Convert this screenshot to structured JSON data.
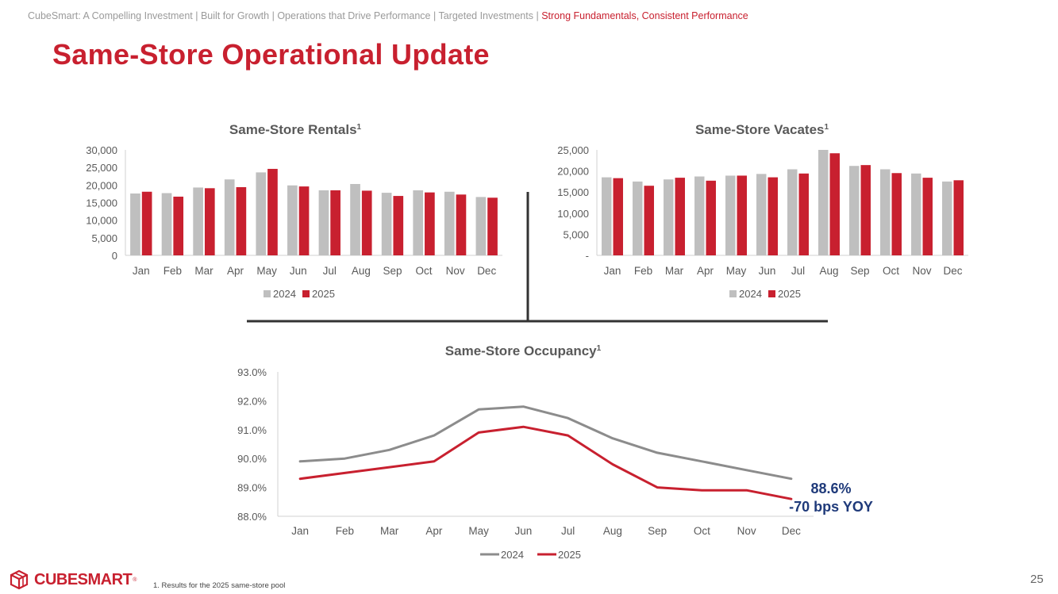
{
  "breadcrumb": {
    "items": [
      "CubeSmart: A Compelling Investment",
      "Built for Growth",
      "Operations that Drive Performance",
      "Targeted Investments",
      "Strong Fundamentals, Consistent Performance"
    ],
    "separator": "|"
  },
  "page_title": "Same-Store Operational Update",
  "footnote": "1.    Results for the 2025 same-store pool",
  "page_number": "25",
  "logo": {
    "text": "CUBESMART",
    "tm": "®"
  },
  "colors": {
    "accent": "#c8202f",
    "series_2024_bar": "#bfbfbf",
    "series_2024_line": "#8c8c8c",
    "series_2025": "#c8202f",
    "callout": "#1f3a7a"
  },
  "annotation": {
    "value": "88.6%",
    "change": "-70 bps YOY"
  },
  "chart_data": [
    {
      "type": "bar",
      "title": "Same-Store Rentals",
      "title_sup": "1",
      "categories": [
        "Jan",
        "Feb",
        "Mar",
        "Apr",
        "May",
        "Jun",
        "Jul",
        "Aug",
        "Sep",
        "Oct",
        "Nov",
        "Dec"
      ],
      "series": [
        {
          "name": "2024",
          "values": [
            17600,
            17700,
            19300,
            21600,
            23600,
            19900,
            18500,
            20300,
            17800,
            18500,
            18100,
            16600
          ]
        },
        {
          "name": "2025",
          "values": [
            18100,
            16700,
            19100,
            19400,
            24600,
            19600,
            18500,
            18400,
            16900,
            17900,
            17300,
            16400
          ]
        }
      ],
      "y_ticks": [
        "0",
        "5,000",
        "10,000",
        "15,000",
        "20,000",
        "25,000",
        "30,000"
      ],
      "ylim": [
        0,
        30000
      ],
      "legend": "bottom"
    },
    {
      "type": "bar",
      "title": "Same-Store Vacates",
      "title_sup": "1",
      "categories": [
        "Jan",
        "Feb",
        "Mar",
        "Apr",
        "May",
        "Jun",
        "Jul",
        "Aug",
        "Sep",
        "Oct",
        "Nov",
        "Dec"
      ],
      "series": [
        {
          "name": "2024",
          "values": [
            18500,
            17500,
            18000,
            18700,
            18900,
            19300,
            20400,
            25000,
            21200,
            20400,
            19400,
            17500
          ]
        },
        {
          "name": "2025",
          "values": [
            18300,
            16500,
            18400,
            17700,
            18900,
            18500,
            19400,
            24200,
            21400,
            19500,
            18400,
            17800
          ]
        }
      ],
      "y_ticks": [
        "-",
        "5,000",
        "10,000",
        "15,000",
        "20,000",
        "25,000"
      ],
      "ylim": [
        0,
        25000
      ],
      "legend": "bottom"
    },
    {
      "type": "line",
      "title": "Same-Store Occupancy",
      "title_sup": "1",
      "categories": [
        "Jan",
        "Feb",
        "Mar",
        "Apr",
        "May",
        "Jun",
        "Jul",
        "Aug",
        "Sep",
        "Oct",
        "Nov",
        "Dec"
      ],
      "series": [
        {
          "name": "2024",
          "values": [
            89.9,
            90.0,
            90.3,
            90.8,
            91.7,
            91.8,
            91.4,
            90.7,
            90.2,
            89.9,
            89.6,
            89.3
          ]
        },
        {
          "name": "2025",
          "values": [
            89.3,
            89.5,
            89.7,
            89.9,
            90.9,
            91.1,
            90.8,
            89.8,
            89.0,
            88.9,
            88.9,
            88.6
          ]
        }
      ],
      "y_ticks": [
        "88.0%",
        "89.0%",
        "90.0%",
        "91.0%",
        "92.0%",
        "93.0%"
      ],
      "ylim": [
        88.0,
        93.0
      ],
      "legend": "bottom"
    }
  ]
}
